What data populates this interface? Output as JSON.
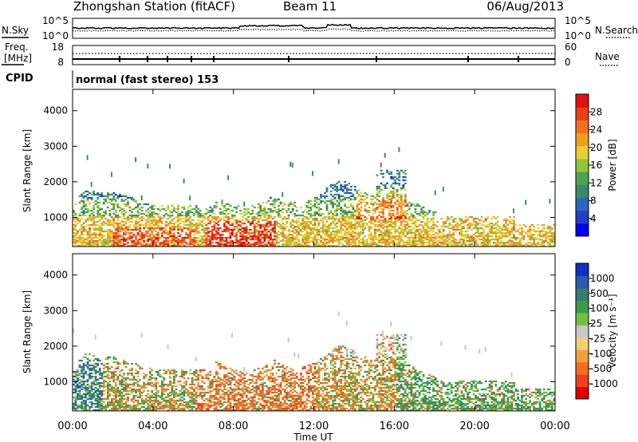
{
  "header": {
    "station": "Zhongshan Station (fitACF)",
    "beam": "Beam 11",
    "date": "06/Aug/2013"
  },
  "summary": {
    "nsky_label": "N.Sky",
    "nsearch_label": "N.Search",
    "left_ticks": [
      "10^5",
      "10^0"
    ],
    "right_ticks": [
      "10^5",
      "10^0"
    ],
    "freq_label_line1": "Freq.",
    "freq_label_line2": "[MHz]",
    "freq_ticks": [
      "18",
      "8"
    ],
    "nave_label": "Nave",
    "nave_ticks": [
      "60",
      "0"
    ],
    "cpid_label": "CPID",
    "cpid_text": "normal (fast stereo) 153"
  },
  "colors": {
    "power": [
      "#0000f0",
      "#2040c0",
      "#2c66b8",
      "#3a8a6a",
      "#4ea34e",
      "#8cc63e",
      "#e8d030",
      "#f0a020",
      "#f07020",
      "#e84018",
      "#e01010"
    ],
    "velocity": [
      "#e00000",
      "#f04020",
      "#f07020",
      "#f0a040",
      "#f0d070",
      "#c8c8c8",
      "#70c040",
      "#3a9a50",
      "#3a7a70",
      "#2c5ab0",
      "#1030c0"
    ]
  },
  "chart_data": [
    {
      "type": "heatmap",
      "name": "power",
      "ylabel": "Slant Range [km]",
      "xlabel": "Time UT",
      "x_ticks": [
        "00:00",
        "04:00",
        "08:00",
        "12:00",
        "16:00",
        "20:00",
        "00:00"
      ],
      "y_ticks": [
        "1000",
        "2000",
        "3000",
        "4000"
      ],
      "ylim": [
        180,
        4600
      ],
      "xlim_hours": [
        0,
        24
      ],
      "colorbar_label": "Power [dB]",
      "colorbar_ticks": [
        "28",
        "24",
        "20",
        "16",
        "12",
        "8",
        "4"
      ],
      "colorbar_range": [
        0,
        32
      ]
    },
    {
      "type": "heatmap",
      "name": "velocity",
      "ylabel": "Slant Range [km]",
      "xlabel": "Time UT",
      "x_ticks": [
        "00:00",
        "04:00",
        "08:00",
        "12:00",
        "16:00",
        "20:00",
        "00:00"
      ],
      "y_ticks": [
        "1000",
        "2000",
        "3000",
        "4000"
      ],
      "ylim": [
        180,
        4600
      ],
      "xlim_hours": [
        0,
        24
      ],
      "colorbar_label": "Velocity [m s⁻¹]",
      "colorbar_ticks": [
        "1000",
        "500",
        "100",
        "25",
        "-25",
        "-100",
        "-500",
        "-1000"
      ]
    }
  ]
}
